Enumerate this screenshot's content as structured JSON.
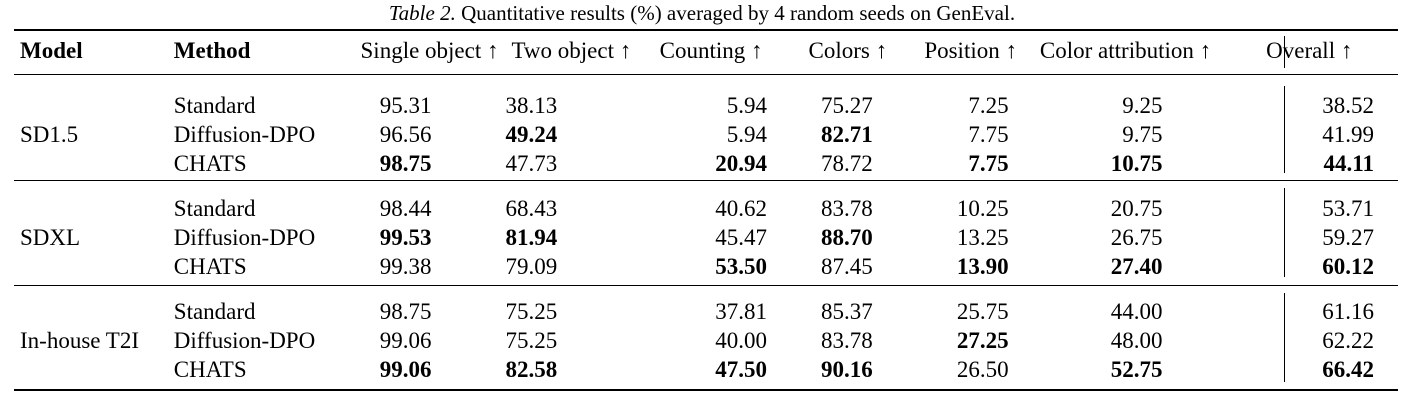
{
  "caption": {
    "label": "Table 2.",
    "text": "Quantitative results (%) averaged by 4 random seeds on GenEval."
  },
  "headers": [
    "Model",
    "Method",
    "Single object ↑",
    "Two object ↑",
    "Counting ↑",
    "Colors ↑",
    "Position ↑",
    "Color attribution ↑",
    "Overall ↑"
  ],
  "groups": [
    {
      "model": "SD1.5",
      "rows": [
        {
          "method": "Standard",
          "values": [
            "95.31",
            "38.13",
            "5.94",
            "75.27",
            "7.25",
            "9.25",
            "38.52"
          ],
          "bold": [
            false,
            false,
            false,
            false,
            false,
            false,
            false
          ]
        },
        {
          "method": "Diffusion-DPO",
          "values": [
            "96.56",
            "49.24",
            "5.94",
            "82.71",
            "7.75",
            "9.75",
            "41.99"
          ],
          "bold": [
            false,
            true,
            false,
            true,
            false,
            false,
            false
          ]
        },
        {
          "method": "CHATS",
          "values": [
            "98.75",
            "47.73",
            "20.94",
            "78.72",
            "7.75",
            "10.75",
            "44.11"
          ],
          "bold": [
            true,
            false,
            true,
            false,
            true,
            true,
            true
          ]
        }
      ]
    },
    {
      "model": "SDXL",
      "rows": [
        {
          "method": "Standard",
          "values": [
            "98.44",
            "68.43",
            "40.62",
            "83.78",
            "10.25",
            "20.75",
            "53.71"
          ],
          "bold": [
            false,
            false,
            false,
            false,
            false,
            false,
            false
          ]
        },
        {
          "method": "Diffusion-DPO",
          "values": [
            "99.53",
            "81.94",
            "45.47",
            "88.70",
            "13.25",
            "26.75",
            "59.27"
          ],
          "bold": [
            true,
            true,
            false,
            true,
            false,
            false,
            false
          ]
        },
        {
          "method": "CHATS",
          "values": [
            "99.38",
            "79.09",
            "53.50",
            "87.45",
            "13.90",
            "27.40",
            "60.12"
          ],
          "bold": [
            false,
            false,
            true,
            false,
            true,
            true,
            true
          ]
        }
      ]
    },
    {
      "model": "In-house T2I",
      "rows": [
        {
          "method": "Standard",
          "values": [
            "98.75",
            "75.25",
            "37.81",
            "85.37",
            "25.75",
            "44.00",
            "61.16"
          ],
          "bold": [
            false,
            false,
            false,
            false,
            false,
            false,
            false
          ]
        },
        {
          "method": "Diffusion-DPO",
          "values": [
            "99.06",
            "75.25",
            "40.00",
            "83.78",
            "27.25",
            "48.00",
            "62.22"
          ],
          "bold": [
            false,
            false,
            false,
            false,
            true,
            false,
            false
          ]
        },
        {
          "method": "CHATS",
          "values": [
            "99.06",
            "82.58",
            "47.50",
            "90.16",
            "26.50",
            "52.75",
            "66.42"
          ],
          "bold": [
            true,
            true,
            true,
            true,
            false,
            true,
            true
          ]
        }
      ]
    }
  ]
}
